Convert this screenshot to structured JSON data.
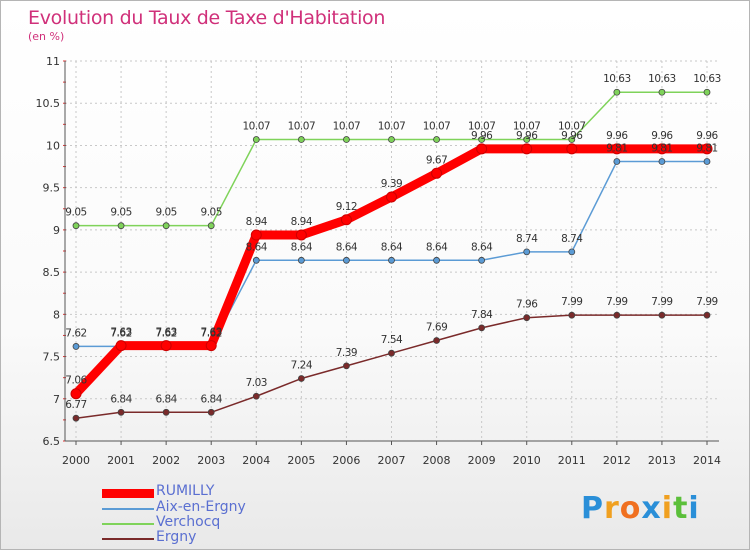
{
  "title": "Evolution du Taux de Taxe d'Habitation",
  "subtitle": "(en %)",
  "chart_data": {
    "type": "line",
    "title": "Evolution du Taux de Taxe d'Habitation",
    "subtitle": "(en %)",
    "xlabel": "",
    "ylabel": "",
    "x": [
      "2000",
      "2001",
      "2002",
      "2003",
      "2004",
      "2005",
      "2006",
      "2007",
      "2008",
      "2009",
      "2010",
      "2011",
      "2012",
      "2013",
      "2014"
    ],
    "ylim": [
      6.5,
      11
    ],
    "yticks": [
      "6.5",
      "7",
      "7.5",
      "8",
      "8.5",
      "9",
      "9.5",
      "10",
      "10.5",
      "11"
    ],
    "grid": "dashed vertical and horizontal",
    "legend_position": "bottom-left",
    "series": [
      {
        "name": "RUMILLY",
        "color": "#ff0000",
        "values": [
          7.06,
          7.63,
          7.63,
          7.63,
          8.94,
          8.94,
          9.12,
          9.39,
          9.67,
          9.96,
          9.96,
          9.96,
          9.96,
          9.96,
          9.96
        ],
        "labels": [
          "7.06",
          "7.63",
          "7.63",
          "7.63",
          "8.94",
          "8.94",
          "9.12",
          "9.39",
          "9.67",
          "9.96",
          "9.96",
          "9.96",
          "9.96",
          "9.96",
          "9.96"
        ]
      },
      {
        "name": "Aix-en-Ergny",
        "color": "#5b9bd5",
        "values": [
          7.62,
          7.62,
          7.62,
          7.62,
          8.64,
          8.64,
          8.64,
          8.64,
          8.64,
          8.64,
          8.74,
          8.74,
          9.81,
          9.81,
          9.81
        ],
        "labels": [
          "7.62",
          "7.62",
          "7.62",
          "7.62",
          "8.64",
          "8.64",
          "8.64",
          "8.64",
          "8.64",
          "8.64",
          "8.74",
          "8.74",
          "9.81",
          "9.81",
          "9.81"
        ]
      },
      {
        "name": "Verchocq",
        "color": "#7fd35a",
        "values": [
          9.05,
          9.05,
          9.05,
          9.05,
          10.07,
          10.07,
          10.07,
          10.07,
          10.07,
          10.07,
          10.07,
          10.07,
          10.63,
          10.63,
          10.63
        ],
        "labels": [
          "9.05",
          "9.05",
          "9.05",
          "9.05",
          "10.07",
          "10.07",
          "10.07",
          "10.07",
          "10.07",
          "10.07",
          "10.07",
          "10.07",
          "10.63",
          "10.63",
          "10.63"
        ]
      },
      {
        "name": "Ergny",
        "color": "#7a2a2a",
        "values": [
          6.77,
          6.84,
          6.84,
          6.84,
          7.03,
          7.24,
          7.39,
          7.54,
          7.69,
          7.84,
          7.96,
          7.99,
          7.99,
          7.99,
          7.99
        ],
        "labels": [
          "6.77",
          "6.84",
          "6.84",
          "6.84",
          "7.03",
          "7.24",
          "7.39",
          "7.54",
          "7.69",
          "7.84",
          "7.96",
          "7.99",
          "7.99",
          "7.99",
          "7.99"
        ]
      }
    ]
  },
  "legend": [
    {
      "label": "RUMILLY",
      "color": "#ff0000"
    },
    {
      "label": "Aix-en-Ergny",
      "color": "#5b9bd5"
    },
    {
      "label": "Verchocq",
      "color": "#7fd35a"
    },
    {
      "label": "Ergny",
      "color": "#7a2a2a"
    }
  ],
  "logo": {
    "text": "Proxiti",
    "letters": [
      "P",
      "r",
      "o",
      "x",
      "i",
      "t",
      "i"
    ],
    "colors": [
      "#2a8fd8",
      "#f0a020",
      "#f07020",
      "#2a8fd8",
      "#f0a020",
      "#5bbf3a",
      "#2a8fd8"
    ]
  }
}
